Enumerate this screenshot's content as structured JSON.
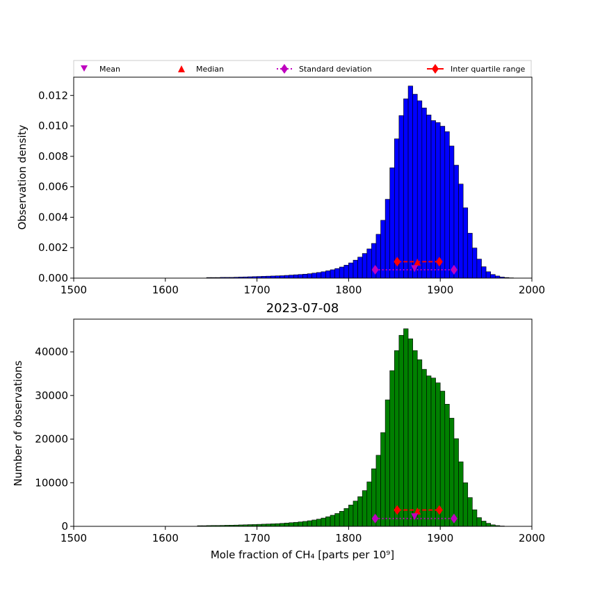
{
  "legend": {
    "mean": "Mean",
    "median": "Median",
    "std": "Standard deviation",
    "iqr": "Inter quartile range"
  },
  "colors": {
    "top_bars": "#0000ff",
    "bottom_bars": "#008000",
    "mean_marker": "#bf00bf",
    "median_marker": "#ff0000",
    "std_marker": "#bf00bf",
    "iqr_marker": "#ff0000"
  },
  "chart_data": [
    {
      "type": "bar",
      "title": "",
      "xlabel": "",
      "ylabel": "Observation density",
      "xlim": [
        1500,
        2000
      ],
      "ylim": [
        0,
        0.0132
      ],
      "xticks": [
        "1500",
        "1600",
        "1700",
        "1800",
        "1900",
        "2000"
      ],
      "yticks": [
        "0.000",
        "0.002",
        "0.004",
        "0.006",
        "0.008",
        "0.010",
        "0.012"
      ],
      "bin_width": 5,
      "bin_starts": [
        1645,
        1650,
        1655,
        1660,
        1665,
        1670,
        1675,
        1680,
        1685,
        1690,
        1695,
        1700,
        1705,
        1710,
        1715,
        1720,
        1725,
        1730,
        1735,
        1740,
        1745,
        1750,
        1755,
        1760,
        1765,
        1770,
        1775,
        1780,
        1785,
        1790,
        1795,
        1800,
        1805,
        1810,
        1815,
        1820,
        1825,
        1830,
        1835,
        1840,
        1845,
        1850,
        1855,
        1860,
        1865,
        1870,
        1875,
        1880,
        1885,
        1890,
        1895,
        1900,
        1905,
        1910,
        1915,
        1920,
        1925,
        1930,
        1935,
        1940,
        1945,
        1950,
        1955,
        1960,
        1965,
        1970,
        1975
      ],
      "values": [
        4e-05,
        4e-05,
        4e-05,
        5e-05,
        5e-05,
        5e-05,
        6e-05,
        7e-05,
        8e-05,
        9e-05,
        0.0001,
        0.00011,
        0.00012,
        0.00013,
        0.00014,
        0.00015,
        0.00016,
        0.00018,
        0.0002,
        0.00022,
        0.00024,
        0.00026,
        0.00029,
        0.00033,
        0.00037,
        0.00042,
        0.00048,
        0.00055,
        0.00063,
        0.00073,
        0.00085,
        0.001,
        0.00118,
        0.00138,
        0.00162,
        0.00192,
        0.00228,
        0.00288,
        0.0038,
        0.00518,
        0.00725,
        0.00915,
        0.01068,
        0.01178,
        0.01262,
        0.01208,
        0.01165,
        0.01118,
        0.01072,
        0.01035,
        0.01022,
        0.00998,
        0.00962,
        0.00868,
        0.00742,
        0.00618,
        0.00462,
        0.00295,
        0.00198,
        0.00125,
        0.00075,
        0.00042,
        0.00024,
        0.00014,
        7e-05,
        4e-05,
        2e-05
      ],
      "stats": {
        "mean": {
          "x": 1872,
          "y": 0.00062
        },
        "median": {
          "x": 1875,
          "y": 0.00105
        },
        "std": {
          "x": [
            1829,
            1915
          ],
          "y": 0.00055
        },
        "iqr": {
          "x": [
            1853,
            1899
          ],
          "y": 0.00108
        }
      }
    },
    {
      "type": "bar",
      "title": "2023-07-08",
      "xlabel": "Mole fraction of CH₄ [parts per 10⁹]",
      "ylabel": "Number of observations",
      "xlim": [
        1500,
        2000
      ],
      "ylim": [
        0,
        47500
      ],
      "xticks": [
        "1500",
        "1600",
        "1700",
        "1800",
        "1900",
        "2000"
      ],
      "yticks": [
        "0",
        "10000",
        "20000",
        "30000",
        "40000"
      ],
      "bin_width": 5,
      "bin_starts": [
        1635,
        1640,
        1645,
        1650,
        1655,
        1660,
        1665,
        1670,
        1675,
        1680,
        1685,
        1690,
        1695,
        1700,
        1705,
        1710,
        1715,
        1720,
        1725,
        1730,
        1735,
        1740,
        1745,
        1750,
        1755,
        1760,
        1765,
        1770,
        1775,
        1780,
        1785,
        1790,
        1795,
        1800,
        1805,
        1810,
        1815,
        1820,
        1825,
        1830,
        1835,
        1840,
        1845,
        1850,
        1855,
        1860,
        1865,
        1870,
        1875,
        1880,
        1885,
        1890,
        1895,
        1900,
        1905,
        1910,
        1915,
        1920,
        1925,
        1930,
        1935,
        1940,
        1945,
        1950,
        1955,
        1960,
        1965,
        1970,
        1975
      ],
      "values": [
        150,
        150,
        180,
        200,
        200,
        220,
        250,
        260,
        290,
        330,
        360,
        400,
        420,
        460,
        500,
        540,
        580,
        620,
        680,
        760,
        840,
        920,
        1020,
        1130,
        1280,
        1450,
        1650,
        1900,
        2200,
        2550,
        2950,
        3450,
        4100,
        4900,
        5800,
        6800,
        8200,
        10200,
        13200,
        16300,
        21500,
        29000,
        35700,
        40300,
        43800,
        45300,
        43000,
        40300,
        38200,
        36000,
        34500,
        34000,
        32900,
        31000,
        28000,
        24800,
        20100,
        14800,
        10000,
        6600,
        3800,
        2000,
        1200,
        700,
        350,
        180,
        80,
        30,
        10
      ],
      "stats": {
        "mean": {
          "x": 1872,
          "y": 2200
        },
        "median": {
          "x": 1875,
          "y": 3500
        },
        "std": {
          "x": [
            1829,
            1915
          ],
          "y": 1800
        },
        "iqr": {
          "x": [
            1853,
            1899
          ],
          "y": 3750
        }
      }
    }
  ]
}
